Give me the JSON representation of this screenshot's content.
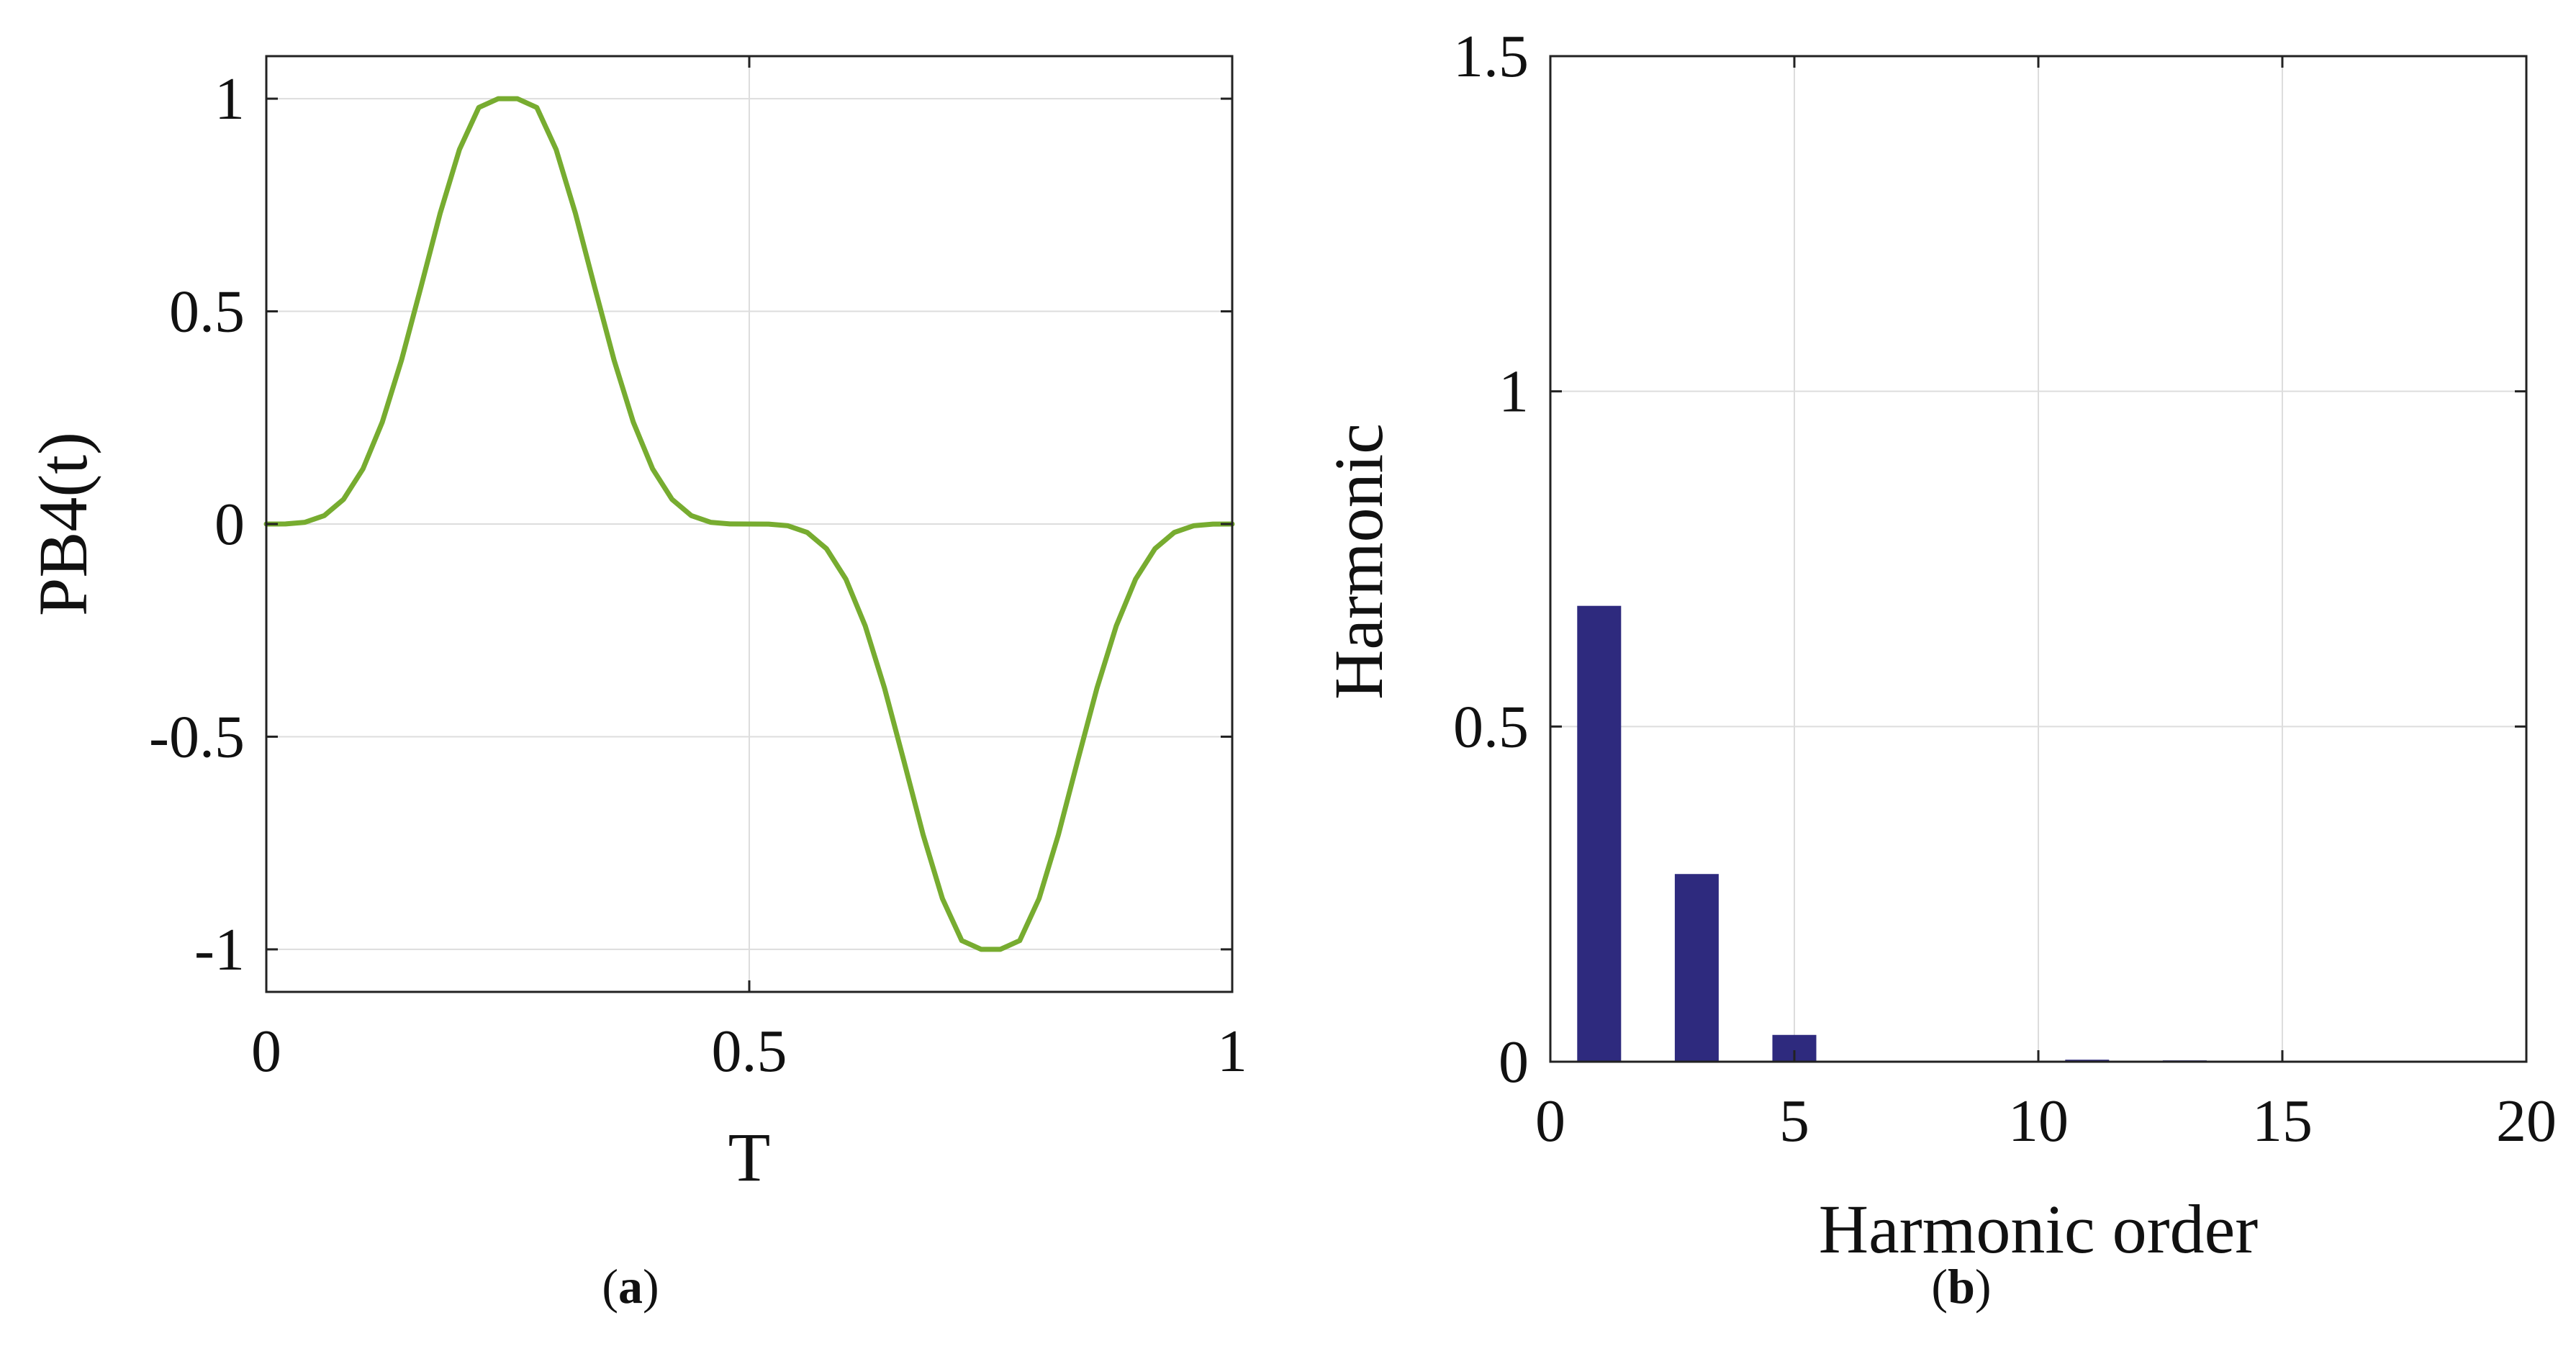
{
  "colors": {
    "line": "#77AC30",
    "bar": "#2E2A7E",
    "axis": "#222222",
    "grid": "#DDDDDD",
    "text": "#111111"
  },
  "chart_data": [
    {
      "id": "a",
      "type": "line",
      "caption": {
        "open": "(",
        "letter": "a",
        "close": ")"
      },
      "xlabel": "T",
      "ylabel": "PB4(t)",
      "xlim": [
        0,
        1
      ],
      "ylim": [
        -1.1,
        1.1
      ],
      "xticks": [
        0,
        0.5,
        1
      ],
      "xtick_labels": [
        "0",
        "0.5",
        "1"
      ],
      "yticks": [
        -1,
        -0.5,
        0,
        0.5,
        1
      ],
      "ytick_labels": [
        "-1",
        "-0.5",
        "0",
        "0.5",
        "1"
      ],
      "grid": true,
      "series": [
        {
          "name": "PB4(t)",
          "x": [
            0,
            0.02,
            0.04,
            0.06,
            0.08,
            0.1,
            0.12,
            0.14,
            0.16,
            0.18,
            0.2,
            0.22,
            0.24,
            0.25,
            0.26,
            0.28,
            0.3,
            0.32,
            0.34,
            0.36,
            0.38,
            0.4,
            0.42,
            0.44,
            0.46,
            0.48,
            0.5,
            0.52,
            0.54,
            0.56,
            0.58,
            0.6,
            0.62,
            0.64,
            0.66,
            0.68,
            0.7,
            0.72,
            0.74,
            0.75,
            0.76,
            0.78,
            0.8,
            0.82,
            0.84,
            0.86,
            0.88,
            0.9,
            0.92,
            0.94,
            0.96,
            0.98,
            1
          ],
          "y": [
            0,
            0.0002,
            0.0041,
            0.0198,
            0.0581,
            0.1294,
            0.2392,
            0.3855,
            0.5563,
            0.7306,
            0.8808,
            0.9794,
            0.9999,
            1,
            0.9999,
            0.9794,
            0.8808,
            0.7306,
            0.5563,
            0.3855,
            0.2392,
            0.1294,
            0.0581,
            0.0198,
            0.0041,
            0.0002,
            0,
            -0.0002,
            -0.0041,
            -0.0198,
            -0.0581,
            -0.1294,
            -0.2392,
            -0.3855,
            -0.5563,
            -0.7306,
            -0.8808,
            -0.9794,
            -0.9999,
            -1,
            -0.9999,
            -0.9794,
            -0.8808,
            -0.7306,
            -0.5563,
            -0.3855,
            -0.2392,
            -0.1294,
            -0.0581,
            -0.0198,
            -0.0041,
            -0.0002,
            0
          ]
        }
      ]
    },
    {
      "id": "b",
      "type": "bar",
      "caption": {
        "open": "(",
        "letter": "b",
        "close": ")"
      },
      "xlabel": "Harmonic order",
      "ylabel": "Harmonic",
      "xlim": [
        0,
        20
      ],
      "ylim": [
        0,
        1.5
      ],
      "xticks": [
        0,
        5,
        10,
        15,
        20
      ],
      "xtick_labels": [
        "0",
        "5",
        "10",
        "15",
        "20"
      ],
      "yticks": [
        0,
        0.5,
        1,
        1.5
      ],
      "ytick_labels": [
        "0",
        "0.5",
        "1",
        "1.5"
      ],
      "grid": true,
      "bar_width": 0.9,
      "categories": [
        1,
        3,
        5,
        7,
        9,
        11,
        13,
        15,
        17,
        19
      ],
      "values": [
        0.68,
        0.28,
        0.04,
        0.001,
        0.001,
        0.003,
        0.002,
        0.001,
        0,
        0
      ]
    }
  ]
}
